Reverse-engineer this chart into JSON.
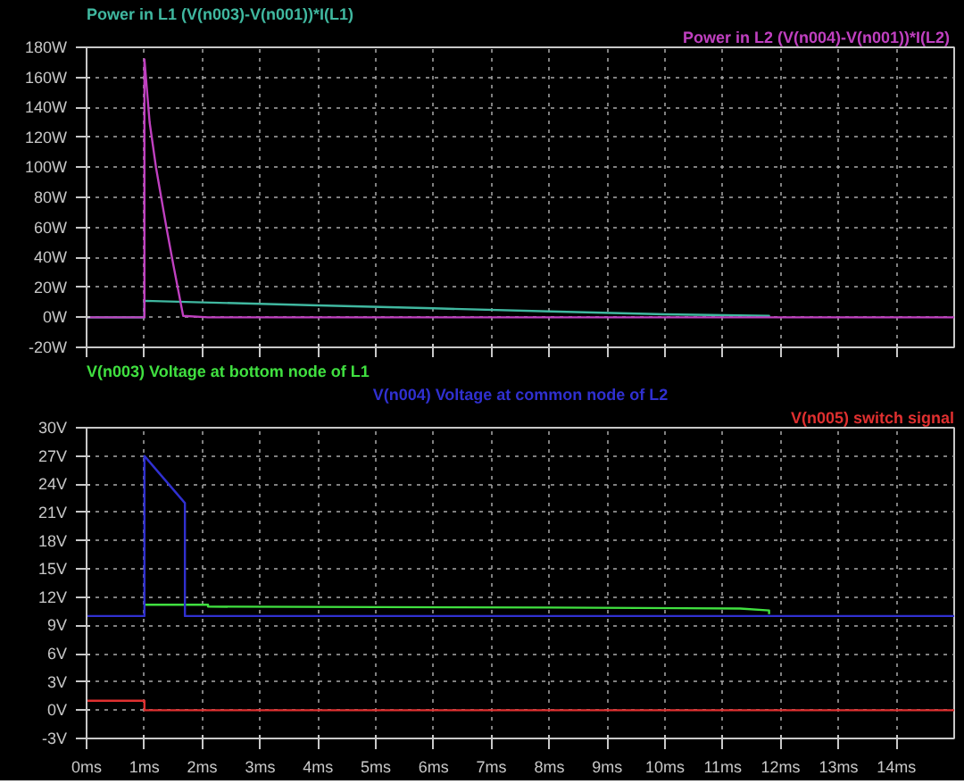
{
  "chart_data": [
    {
      "type": "line",
      "grid": true,
      "marker": "none",
      "line_style": "solid",
      "tick_labels": "y",
      "xlim": [
        0,
        15
      ],
      "xticks": [
        0,
        1,
        2,
        3,
        4,
        5,
        6,
        7,
        8,
        9,
        10,
        11,
        12,
        13,
        14
      ],
      "ylim": [
        -20,
        180
      ],
      "yticks": [
        {
          "value": -20,
          "label": "-20W"
        },
        {
          "value": 0,
          "label": "0W"
        },
        {
          "value": 20,
          "label": "20W"
        },
        {
          "value": 40,
          "label": "40W"
        },
        {
          "value": 60,
          "label": "60W"
        },
        {
          "value": 80,
          "label": "80W"
        },
        {
          "value": 100,
          "label": "100W"
        },
        {
          "value": 120,
          "label": "120W"
        },
        {
          "value": 140,
          "label": "140W"
        },
        {
          "value": 160,
          "label": "160W"
        },
        {
          "value": 180,
          "label": "180W"
        }
      ],
      "series": [
        {
          "name": "Power in L1  (V(n003)-V(n001))*I(L1)",
          "color": "#40b8a0",
          "x": [
            0,
            1,
            1,
            2,
            4,
            6,
            8,
            10,
            11.8,
            11.8
          ],
          "values": [
            0,
            0,
            11,
            10,
            8,
            6,
            4,
            2,
            1,
            0
          ]
        },
        {
          "name": "Power in L2  (V(n004)-V(n001))*I(L2)",
          "color": "#c040c0",
          "x": [
            0,
            1,
            1,
            1.09,
            1.2,
            1.38,
            1.5,
            1.67,
            2.1,
            15
          ],
          "values": [
            0,
            0,
            172,
            130,
            100,
            60,
            35,
            1,
            0,
            0
          ]
        }
      ]
    },
    {
      "type": "line",
      "grid": true,
      "marker": "none",
      "line_style": "solid",
      "xlim": [
        0,
        15
      ],
      "xticks": [
        {
          "value": 0,
          "label": "0ms"
        },
        {
          "value": 1,
          "label": "1ms"
        },
        {
          "value": 2,
          "label": "2ms"
        },
        {
          "value": 3,
          "label": "3ms"
        },
        {
          "value": 4,
          "label": "4ms"
        },
        {
          "value": 5,
          "label": "5ms"
        },
        {
          "value": 6,
          "label": "6ms"
        },
        {
          "value": 7,
          "label": "7ms"
        },
        {
          "value": 8,
          "label": "8ms"
        },
        {
          "value": 9,
          "label": "9ms"
        },
        {
          "value": 10,
          "label": "10ms"
        },
        {
          "value": 11,
          "label": "11ms"
        },
        {
          "value": 12,
          "label": "12ms"
        },
        {
          "value": 13,
          "label": "13ms"
        },
        {
          "value": 14,
          "label": "14ms"
        }
      ],
      "ylim": [
        -3,
        30
      ],
      "yticks": [
        {
          "value": -3,
          "label": "-3V"
        },
        {
          "value": 0,
          "label": "0V"
        },
        {
          "value": 3,
          "label": "3V"
        },
        {
          "value": 6,
          "label": "6V"
        },
        {
          "value": 9,
          "label": "9V"
        },
        {
          "value": 12,
          "label": "12V"
        },
        {
          "value": 15,
          "label": "15V"
        },
        {
          "value": 18,
          "label": "18V"
        },
        {
          "value": 21,
          "label": "21V"
        },
        {
          "value": 24,
          "label": "24V"
        },
        {
          "value": 27,
          "label": "27V"
        },
        {
          "value": 30,
          "label": "30V"
        }
      ],
      "series": [
        {
          "name": "V(n003) Voltage at bottom node of L1",
          "color": "#40e040",
          "x": [
            1,
            2.1,
            2.1,
            8,
            11.3,
            11.8,
            11.8
          ],
          "values": [
            11.2,
            11.2,
            11.0,
            10.9,
            10.8,
            10.6,
            10.2
          ]
        },
        {
          "name": "V(n004) Voltage at common node of L2",
          "color": "#3030d0",
          "x": [
            0,
            1,
            1,
            1.7,
            1.7,
            15
          ],
          "values": [
            10,
            10,
            27,
            22,
            10,
            10
          ]
        },
        {
          "name": "V(n005) switch signal",
          "color": "#e03030",
          "x": [
            0,
            1,
            1,
            15
          ],
          "values": [
            1,
            1,
            0,
            0
          ]
        }
      ]
    }
  ]
}
